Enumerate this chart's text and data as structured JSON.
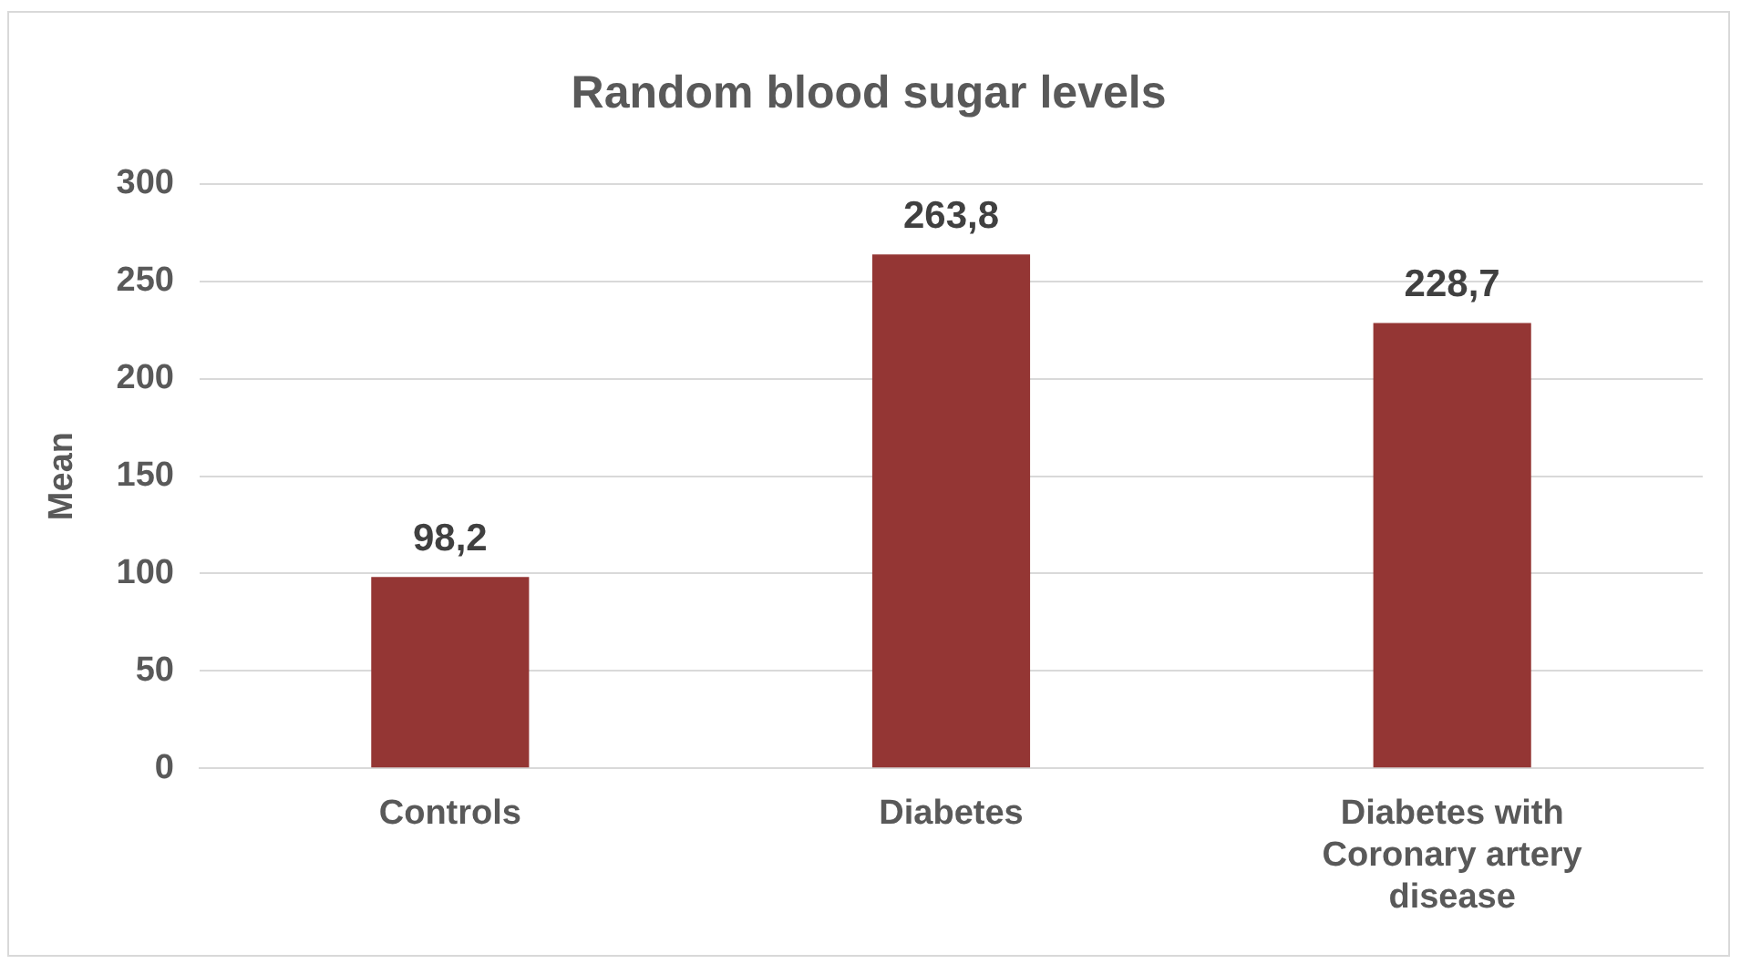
{
  "chart_data": {
    "type": "bar",
    "title": "Random blood sugar levels",
    "ylabel": "Mean",
    "categories": [
      "Controls",
      "Diabetes",
      "Diabetes with Coronary artery disease"
    ],
    "values": [
      98.2,
      263.8,
      228.7
    ],
    "color": "#943634",
    "value_labels": [
      "98,2",
      "263,8",
      "228,7"
    ],
    "ylim": [
      0,
      300
    ],
    "yticks": [
      0,
      50,
      100,
      150,
      200,
      250,
      300
    ],
    "grid": "y",
    "legend": false
  }
}
